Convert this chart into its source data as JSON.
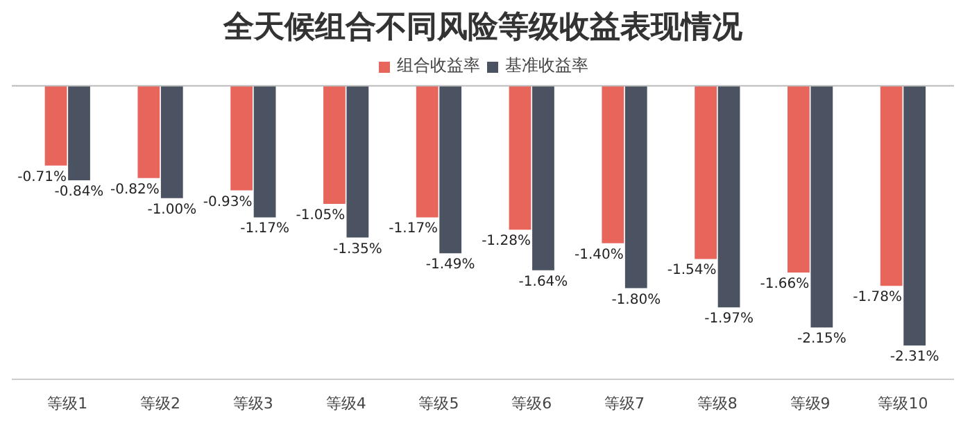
{
  "chart_data": {
    "type": "bar",
    "title": "全天候组合不同风险等级收益表现情况",
    "categories": [
      "等级1",
      "等级2",
      "等级3",
      "等级4",
      "等级5",
      "等级6",
      "等级7",
      "等级8",
      "等级9",
      "等级10"
    ],
    "series": [
      {
        "name": "组合收益率",
        "color": "#e8655c",
        "values": [
          -0.71,
          -0.82,
          -0.93,
          -1.05,
          -1.17,
          -1.28,
          -1.4,
          -1.54,
          -1.66,
          -1.78
        ],
        "value_labels": [
          "-0.71%",
          "-0.82%",
          "-0.93%",
          "-1.05%",
          "-1.17%",
          "-1.28%",
          "-1.40%",
          "-1.54%",
          "-1.66%",
          "-1.78%"
        ]
      },
      {
        "name": "基准收益率",
        "color": "#4b5262",
        "values": [
          -0.84,
          -1.0,
          -1.17,
          -1.35,
          -1.49,
          -1.64,
          -1.8,
          -1.97,
          -2.15,
          -2.31
        ],
        "value_labels": [
          "-0.84%",
          "-1.00%",
          "-1.17%",
          "-1.35%",
          "-1.49%",
          "-1.64%",
          "-1.80%",
          "-1.97%",
          "-2.15%",
          "-2.31%"
        ]
      }
    ],
    "legend": "top",
    "ref_lines": [
      {
        "axis": "y",
        "value": 0,
        "color": "#bbbbbb"
      }
    ]
  }
}
